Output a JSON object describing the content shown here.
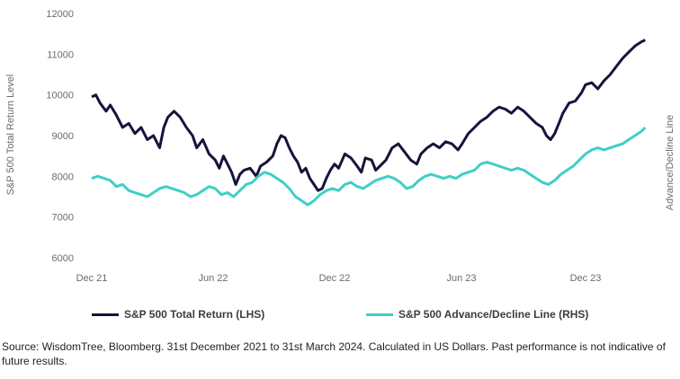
{
  "chart_data": {
    "type": "line",
    "x_tick_labels": [
      "Dec 21",
      "Jun 22",
      "Dec 22",
      "Jun 23",
      "Dec 23"
    ],
    "y_left": {
      "label": "S&P 500 Total Return Level",
      "ticks": [
        6000,
        7000,
        8000,
        9000,
        10000,
        11000,
        12000
      ],
      "ylim": [
        6000,
        12000
      ]
    },
    "y_right": {
      "label": "Advance/Decline Line"
    },
    "series": [
      {
        "name": "S&P 500 Total Return (LHS)",
        "axis": "left",
        "color": "#14143c",
        "points": [
          [
            0,
            9950
          ],
          [
            0.1,
            10000
          ],
          [
            0.2,
            9800
          ],
          [
            0.35,
            9600
          ],
          [
            0.45,
            9750
          ],
          [
            0.6,
            9500
          ],
          [
            0.75,
            9200
          ],
          [
            0.9,
            9300
          ],
          [
            1.05,
            9050
          ],
          [
            1.2,
            9200
          ],
          [
            1.35,
            8900
          ],
          [
            1.5,
            9000
          ],
          [
            1.65,
            8700
          ],
          [
            1.75,
            9200
          ],
          [
            1.85,
            9450
          ],
          [
            2.0,
            9600
          ],
          [
            2.15,
            9450
          ],
          [
            2.3,
            9200
          ],
          [
            2.45,
            9000
          ],
          [
            2.55,
            8700
          ],
          [
            2.7,
            8900
          ],
          [
            2.85,
            8550
          ],
          [
            3.0,
            8400
          ],
          [
            3.1,
            8200
          ],
          [
            3.2,
            8500
          ],
          [
            3.3,
            8300
          ],
          [
            3.4,
            8100
          ],
          [
            3.5,
            7800
          ],
          [
            3.6,
            8050
          ],
          [
            3.7,
            8150
          ],
          [
            3.85,
            8200
          ],
          [
            4.0,
            8000
          ],
          [
            4.1,
            8250
          ],
          [
            4.25,
            8350
          ],
          [
            4.4,
            8500
          ],
          [
            4.5,
            8800
          ],
          [
            4.6,
            9000
          ],
          [
            4.7,
            8950
          ],
          [
            4.8,
            8700
          ],
          [
            4.9,
            8500
          ],
          [
            5.0,
            8350
          ],
          [
            5.1,
            8100
          ],
          [
            5.2,
            8200
          ],
          [
            5.3,
            7950
          ],
          [
            5.4,
            7800
          ],
          [
            5.5,
            7650
          ],
          [
            5.6,
            7700
          ],
          [
            5.7,
            7950
          ],
          [
            5.8,
            8150
          ],
          [
            5.9,
            8300
          ],
          [
            6.0,
            8200
          ],
          [
            6.15,
            8550
          ],
          [
            6.3,
            8450
          ],
          [
            6.45,
            8250
          ],
          [
            6.55,
            8100
          ],
          [
            6.65,
            8450
          ],
          [
            6.8,
            8400
          ],
          [
            6.9,
            8150
          ],
          [
            7.0,
            8250
          ],
          [
            7.15,
            8400
          ],
          [
            7.3,
            8700
          ],
          [
            7.45,
            8800
          ],
          [
            7.6,
            8600
          ],
          [
            7.75,
            8400
          ],
          [
            7.9,
            8300
          ],
          [
            8.0,
            8550
          ],
          [
            8.15,
            8700
          ],
          [
            8.3,
            8800
          ],
          [
            8.45,
            8700
          ],
          [
            8.6,
            8850
          ],
          [
            8.75,
            8800
          ],
          [
            8.9,
            8650
          ],
          [
            9.0,
            8800
          ],
          [
            9.15,
            9050
          ],
          [
            9.3,
            9200
          ],
          [
            9.45,
            9350
          ],
          [
            9.6,
            9450
          ],
          [
            9.75,
            9600
          ],
          [
            9.9,
            9700
          ],
          [
            10.05,
            9650
          ],
          [
            10.2,
            9550
          ],
          [
            10.35,
            9700
          ],
          [
            10.5,
            9600
          ],
          [
            10.65,
            9450
          ],
          [
            10.8,
            9300
          ],
          [
            10.95,
            9200
          ],
          [
            11.05,
            9000
          ],
          [
            11.15,
            8900
          ],
          [
            11.25,
            9050
          ],
          [
            11.35,
            9300
          ],
          [
            11.45,
            9550
          ],
          [
            11.6,
            9800
          ],
          [
            11.75,
            9850
          ],
          [
            11.9,
            10050
          ],
          [
            12.0,
            10250
          ],
          [
            12.15,
            10300
          ],
          [
            12.3,
            10150
          ],
          [
            12.45,
            10350
          ],
          [
            12.6,
            10500
          ],
          [
            12.75,
            10700
          ],
          [
            12.9,
            10900
          ],
          [
            13.05,
            11050
          ],
          [
            13.2,
            11200
          ],
          [
            13.35,
            11300
          ],
          [
            13.45,
            11350
          ]
        ]
      },
      {
        "name": "S&P 500 Advance/Decline Line (RHS)",
        "axis": "right",
        "color": "#3ecfc6",
        "points": [
          [
            0,
            7950
          ],
          [
            0.15,
            8000
          ],
          [
            0.3,
            7950
          ],
          [
            0.45,
            7900
          ],
          [
            0.6,
            7750
          ],
          [
            0.75,
            7800
          ],
          [
            0.9,
            7650
          ],
          [
            1.05,
            7600
          ],
          [
            1.2,
            7550
          ],
          [
            1.35,
            7500
          ],
          [
            1.5,
            7600
          ],
          [
            1.65,
            7700
          ],
          [
            1.8,
            7750
          ],
          [
            1.95,
            7700
          ],
          [
            2.1,
            7650
          ],
          [
            2.25,
            7600
          ],
          [
            2.4,
            7500
          ],
          [
            2.55,
            7550
          ],
          [
            2.7,
            7650
          ],
          [
            2.85,
            7750
          ],
          [
            3.0,
            7700
          ],
          [
            3.15,
            7550
          ],
          [
            3.3,
            7600
          ],
          [
            3.45,
            7500
          ],
          [
            3.6,
            7650
          ],
          [
            3.75,
            7800
          ],
          [
            3.9,
            7850
          ],
          [
            4.05,
            8000
          ],
          [
            4.2,
            8100
          ],
          [
            4.35,
            8050
          ],
          [
            4.5,
            7950
          ],
          [
            4.65,
            7850
          ],
          [
            4.8,
            7700
          ],
          [
            4.95,
            7500
          ],
          [
            5.1,
            7400
          ],
          [
            5.25,
            7300
          ],
          [
            5.4,
            7400
          ],
          [
            5.55,
            7550
          ],
          [
            5.7,
            7650
          ],
          [
            5.85,
            7700
          ],
          [
            6.0,
            7650
          ],
          [
            6.15,
            7800
          ],
          [
            6.3,
            7850
          ],
          [
            6.45,
            7750
          ],
          [
            6.6,
            7700
          ],
          [
            6.75,
            7800
          ],
          [
            6.9,
            7900
          ],
          [
            7.05,
            7950
          ],
          [
            7.2,
            8000
          ],
          [
            7.35,
            7950
          ],
          [
            7.5,
            7850
          ],
          [
            7.65,
            7700
          ],
          [
            7.8,
            7750
          ],
          [
            7.95,
            7900
          ],
          [
            8.1,
            8000
          ],
          [
            8.25,
            8050
          ],
          [
            8.4,
            8000
          ],
          [
            8.55,
            7950
          ],
          [
            8.7,
            8000
          ],
          [
            8.85,
            7950
          ],
          [
            9.0,
            8050
          ],
          [
            9.15,
            8100
          ],
          [
            9.3,
            8150
          ],
          [
            9.45,
            8300
          ],
          [
            9.6,
            8350
          ],
          [
            9.75,
            8300
          ],
          [
            9.9,
            8250
          ],
          [
            10.05,
            8200
          ],
          [
            10.2,
            8150
          ],
          [
            10.35,
            8200
          ],
          [
            10.5,
            8150
          ],
          [
            10.65,
            8050
          ],
          [
            10.8,
            7950
          ],
          [
            10.95,
            7850
          ],
          [
            11.1,
            7800
          ],
          [
            11.25,
            7900
          ],
          [
            11.4,
            8050
          ],
          [
            11.55,
            8150
          ],
          [
            11.7,
            8250
          ],
          [
            11.85,
            8400
          ],
          [
            12.0,
            8550
          ],
          [
            12.15,
            8650
          ],
          [
            12.3,
            8700
          ],
          [
            12.45,
            8650
          ],
          [
            12.6,
            8700
          ],
          [
            12.75,
            8750
          ],
          [
            12.9,
            8800
          ],
          [
            13.05,
            8900
          ],
          [
            13.2,
            9000
          ],
          [
            13.35,
            9100
          ],
          [
            13.45,
            9200
          ]
        ]
      }
    ],
    "grid": false,
    "legend_position": "bottom"
  },
  "source_note": "Source: WisdomTree, Bloomberg. 31st December 2021  to 31st March 2024. Calculated in US Dollars. Past performance is not indicative of future results."
}
